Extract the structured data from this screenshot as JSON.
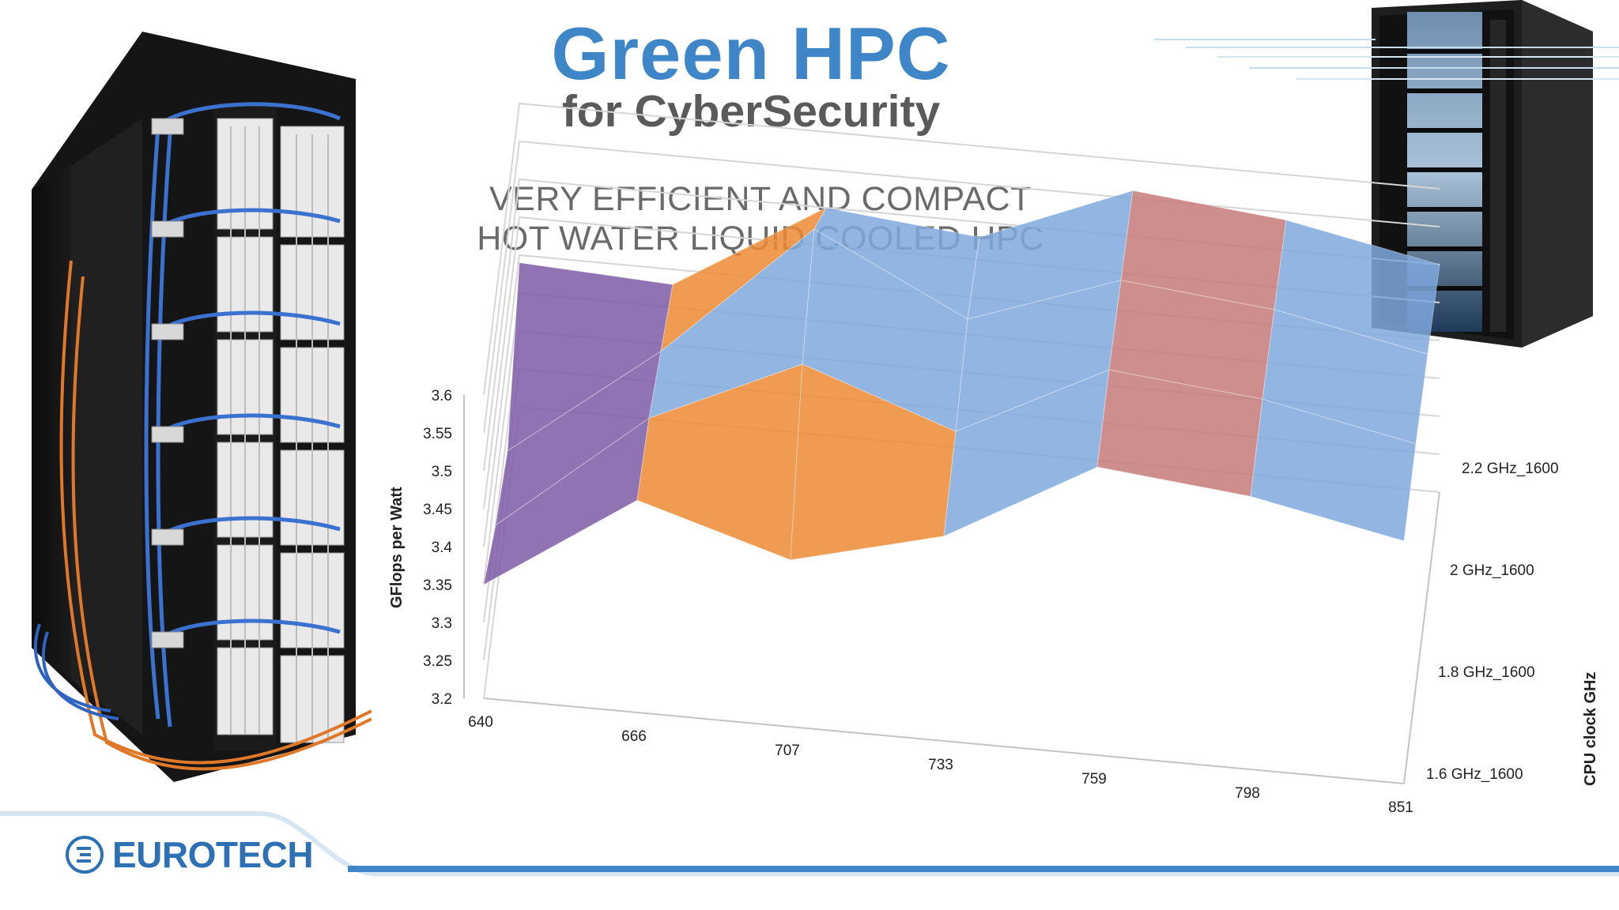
{
  "slide": {
    "title": "Green HPC",
    "subtitle": "for CyberSecurity",
    "tagline_line1": "VERY EFFICIENT AND COMPACT",
    "tagline_line2": "HOT WATER LIQUID COOLED HPC"
  },
  "brand": {
    "logo_text": "EUROTECH",
    "logo_color": "#2d70b3",
    "title_color": "#3f86c9"
  },
  "chart_data": {
    "type": "surface",
    "title": "",
    "ylabel": "GFlops per Watt",
    "zlabel": "CPU clock GHz",
    "xlabel": "",
    "x": [
      "640",
      "666",
      "707",
      "733",
      "759",
      "798",
      "851"
    ],
    "series_names": [
      "1.6 GHz_1600",
      "1.8 GHz_1600",
      "2 GHz_1600",
      "2.2 GHz_1600"
    ],
    "yticks": [
      "3.2",
      "3.25",
      "3.3",
      "3.35",
      "3.4",
      "3.45",
      "3.5",
      "3.55",
      "3.6"
    ],
    "ylim": [
      3.2,
      3.6
    ],
    "values": [
      [
        3.35,
        3.48,
        3.42,
        3.47,
        3.58,
        3.56,
        3.52
      ],
      [
        3.3,
        3.46,
        3.55,
        3.48,
        3.58,
        3.56,
        3.52
      ],
      [
        3.27,
        3.42,
        3.6,
        3.5,
        3.57,
        3.55,
        3.51
      ],
      [
        3.39,
        3.38,
        3.5,
        3.48,
        3.56,
        3.54,
        3.5
      ]
    ],
    "band_colors": [
      "#4f7fbf",
      "#cc4c4c",
      "#9bbf45",
      "#7c5aa6",
      "#3fa8c4",
      "#ec8a34",
      "#7fa8dd",
      "#c57a7a"
    ],
    "grid": true
  }
}
